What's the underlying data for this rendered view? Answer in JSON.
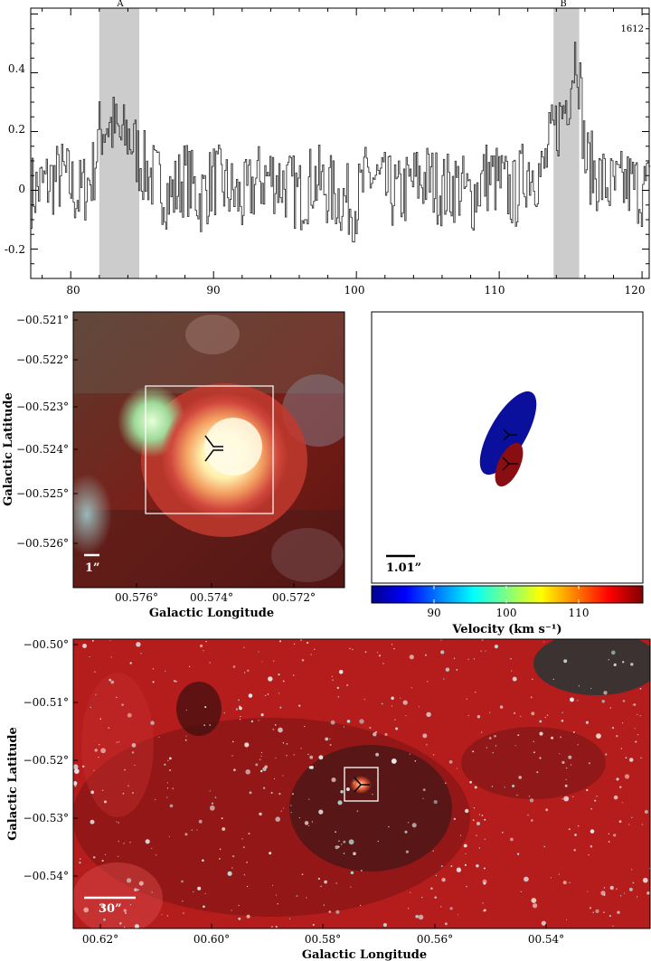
{
  "spectrum": {
    "label": "1612",
    "regions": [
      {
        "name": "A",
        "x0": 82.0,
        "x1": 84.8
      },
      {
        "name": "B",
        "x0": 113.8,
        "x1": 115.6
      }
    ],
    "x_ticks": [
      "80",
      "90",
      "100",
      "110",
      "120"
    ],
    "y_ticks": [
      "0.4",
      "0.2",
      "0",
      "-0.2"
    ]
  },
  "zoom_image": {
    "y_ticks": [
      "−00.521°",
      "−00.522°",
      "−00.523°",
      "−00.524°",
      "−00.525°",
      "−00.526°"
    ],
    "x_ticks": [
      "00.576°",
      "00.574°",
      "00.572°"
    ],
    "xlabel": "Galactic Longitude",
    "ylabel": "Galactic Latitude",
    "scale_bar": "1”"
  },
  "maser_panel": {
    "scale_bar": "1.01”",
    "colorbar_ticks": [
      "90",
      "100",
      "110"
    ],
    "colorbar_label": "Velocity (km s⁻¹)"
  },
  "wide_image": {
    "y_ticks": [
      "−00.50°",
      "−00.51°",
      "−00.52°",
      "−00.53°",
      "−00.54°"
    ],
    "x_ticks": [
      "00.62°",
      "00.60°",
      "00.58°",
      "00.56°",
      "00.54°"
    ],
    "xlabel": "Galactic Longitude",
    "ylabel": "Galactic Latitude",
    "scale_bar": "30”"
  },
  "chart_data": [
    {
      "type": "line",
      "title": "",
      "xlabel": "",
      "ylabel": "",
      "xlim": [
        77.2,
        120.5
      ],
      "ylim": [
        -0.3,
        0.62
      ],
      "series": [
        {
          "x": [
            77.5,
            78.5,
            79.5,
            80.5,
            81.5,
            82.0,
            82.5,
            83.0,
            83.5,
            84.0,
            84.5,
            85.0,
            86.0,
            87.0,
            88.0,
            89.0,
            90.0,
            91.0,
            92.0,
            93.0,
            94.0,
            95.0,
            96.0,
            97.0,
            98.0,
            99.0,
            99.9,
            100.5,
            101.0,
            102.0,
            103.0,
            104.0,
            105.0,
            106.0,
            107.0,
            108.0,
            109.0,
            110.0,
            111.0,
            112.0,
            113.0,
            113.5,
            114.0,
            114.3,
            114.6,
            114.9,
            115.2,
            115.4,
            115.7,
            116.0,
            117.0,
            118.0,
            119.0,
            120.0
          ],
          "y": [
            0.0,
            0.03,
            0.05,
            -0.02,
            0.05,
            0.2,
            0.23,
            0.21,
            0.17,
            0.19,
            0.14,
            0.08,
            0.03,
            -0.02,
            0.05,
            -0.03,
            0.04,
            0.0,
            -0.04,
            0.03,
            0.05,
            0.02,
            -0.02,
            0.04,
            0.0,
            -0.03,
            -0.05,
            0.02,
            0.05,
            0.0,
            -0.02,
            0.03,
            0.04,
            0.0,
            0.02,
            -0.03,
            0.05,
            0.03,
            -0.02,
            0.08,
            0.05,
            0.15,
            0.22,
            0.25,
            0.3,
            0.35,
            0.45,
            0.5,
            0.3,
            0.1,
            0.04,
            0.0,
            0.02,
            0.0
          ]
        }
      ]
    },
    {
      "type": "scatter",
      "title": "",
      "xlabel": "",
      "ylabel": "",
      "colorbar": {
        "label": "Velocity (km s⁻¹)",
        "range": [
          82.3,
          116.0
        ],
        "ticks": [
          90,
          100,
          110
        ]
      },
      "series": [
        {
          "name": "",
          "velocity": 83.5,
          "shape": "ellipse",
          "color": "#0a0f9c"
        },
        {
          "name": "",
          "velocity": 115.0,
          "shape": "ellipse",
          "color": "#8a0d12"
        }
      ]
    }
  ]
}
